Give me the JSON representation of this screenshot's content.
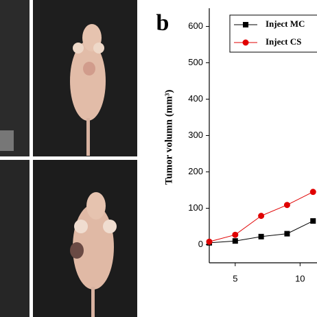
{
  "chart_data": {
    "type": "line",
    "panel_label": "b",
    "y_label": "Tumor volumn (mm³)",
    "x": [
      3,
      5,
      7,
      9,
      11
    ],
    "series": [
      {
        "name": "Inject MC",
        "color": "#000000",
        "marker": "square",
        "values": [
          5,
          10,
          22,
          30,
          65
        ]
      },
      {
        "name": "Inject CS",
        "color": "#e00000",
        "marker": "circle",
        "values": [
          8,
          27,
          79,
          109,
          145
        ]
      }
    ],
    "xlim": [
      3,
      11.3
    ],
    "xticks": [
      5,
      10
    ],
    "ylim": [
      -50,
      650
    ],
    "yticks": [
      0,
      100,
      200,
      300,
      400,
      500,
      600
    ],
    "grid": false,
    "legend": "upper right"
  }
}
